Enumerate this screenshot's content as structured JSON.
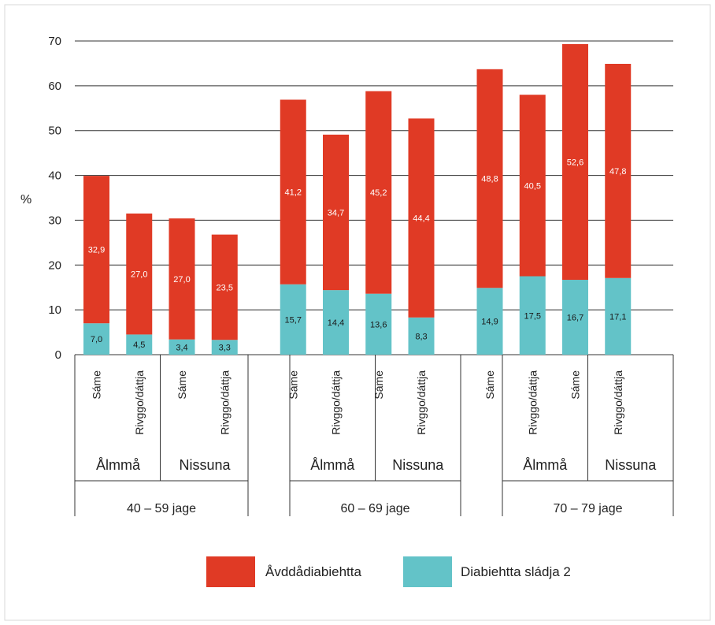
{
  "chart_data": {
    "type": "bar",
    "stacked": true,
    "ylabel": "%",
    "ylim": [
      0,
      70
    ],
    "yticks": [
      "0",
      "10",
      "20",
      "30",
      "40",
      "50",
      "60",
      "70"
    ],
    "grid": true,
    "legend": {
      "position": "bottom"
    },
    "series": [
      {
        "name": "Diabiehtta sládja 2",
        "color": "#63c3c8",
        "values": [
          7.0,
          4.5,
          3.4,
          3.3,
          15.7,
          14.4,
          13.6,
          8.3,
          14.9,
          17.5,
          16.7,
          17.1
        ],
        "labels": [
          "7,0",
          "4,5",
          "3,4",
          "3,3",
          "15,7",
          "14,4",
          "13,6",
          "8,3",
          "14,9",
          "17,5",
          "16,7",
          "17,1"
        ]
      },
      {
        "name": "Åvddådiabiehtta",
        "color": "#e03a25",
        "values": [
          32.9,
          27.0,
          27.0,
          23.5,
          41.2,
          34.7,
          45.2,
          44.4,
          48.8,
          40.5,
          52.6,
          47.8
        ],
        "labels": [
          "32,9",
          "27,0",
          "27,0",
          "23,5",
          "41,2",
          "34,7",
          "45,2",
          "44,4",
          "48,8",
          "40,5",
          "52,6",
          "47,8"
        ]
      }
    ],
    "categories": [
      "Sáme",
      "Rivggo/dáttja",
      "Sáme",
      "Rivggo/dáttja",
      "Sáme",
      "Rivggo/dáttja",
      "Sáme",
      "Rivggo/dáttja",
      "Sáme",
      "Rivggo/dáttja",
      "Sáme",
      "Rivggo/dáttja"
    ],
    "subgroups": [
      "Ålmmå",
      "Nissuna",
      "Ålmmå",
      "Nissuna",
      "Ålmmå",
      "Nissuna"
    ],
    "groups": [
      "40 – 59 jage",
      "60 – 69 jage",
      "70 – 79 jage"
    ]
  }
}
